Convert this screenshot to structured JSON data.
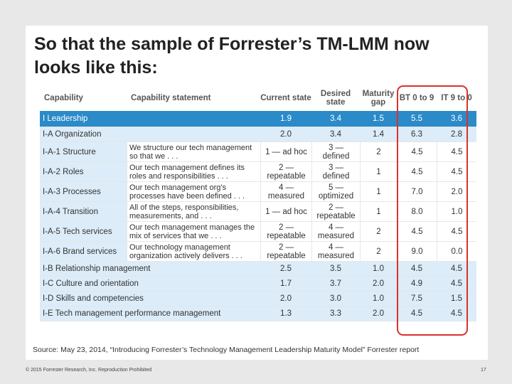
{
  "title": "So that the sample of Forrester’s TM-LMM now looks like this:",
  "table": {
    "headers": [
      "Capability",
      "Capability statement",
      "Current state",
      "Desired state",
      "Maturity gap",
      "BT 0 to 9",
      "IT 9 to 0"
    ],
    "rows": [
      {
        "capability": "I Leadership",
        "statement": "",
        "current": "1.9",
        "desired": "3.4",
        "gap": "1.5",
        "bt": "5.5",
        "it": "3.6"
      },
      {
        "capability": "I-A Organization",
        "statement": "",
        "current": "2.0",
        "desired": "3.4",
        "gap": "1.4",
        "bt": "6.3",
        "it": "2.8"
      },
      {
        "capability": "I-A-1 Structure",
        "statement": "We structure our tech management so that we . . .",
        "current": "1 — ad hoc",
        "desired": "3 — defined",
        "gap": "2",
        "bt": "4.5",
        "it": "4.5"
      },
      {
        "capability": "I-A-2 Roles",
        "statement": "Our tech management defines its roles and responsibilities . . .",
        "current": "2 — repeatable",
        "desired": "3 — defined",
        "gap": "1",
        "bt": "4.5",
        "it": "4.5"
      },
      {
        "capability": "I-A-3 Processes",
        "statement": "Our tech management org's processes have been defined . . .",
        "current": "4 — measured",
        "desired": "5 — optimized",
        "gap": "1",
        "bt": "7.0",
        "it": "2.0"
      },
      {
        "capability": "I-A-4 Transition",
        "statement": "All of the steps, responsibilities, measurements, and . . .",
        "current": "1 — ad hoc",
        "desired": "2 — repeatable",
        "gap": "1",
        "bt": "8.0",
        "it": "1.0"
      },
      {
        "capability": "I-A-5 Tech services",
        "statement": "Our tech management manages the mix of services that we . . .",
        "current": "2 — repeatable",
        "desired": "4 — measured",
        "gap": "2",
        "bt": "4.5",
        "it": "4.5"
      },
      {
        "capability": "I-A-6 Brand services",
        "statement": "Our technology management organization actively delivers . . .",
        "current": "2 — repeatable",
        "desired": "4 — measured",
        "gap": "2",
        "bt": "9.0",
        "it": "0.0"
      },
      {
        "capability": "I-B Relationship management",
        "statement": "",
        "current": "2.5",
        "desired": "3.5",
        "gap": "1.0",
        "bt": "4.5",
        "it": "4.5"
      },
      {
        "capability": "I-C Culture and orientation",
        "statement": "",
        "current": "1.7",
        "desired": "3.7",
        "gap": "2.0",
        "bt": "4.9",
        "it": "4.5"
      },
      {
        "capability": "I-D Skills and competencies",
        "statement": "",
        "current": "2.0",
        "desired": "3.0",
        "gap": "1.0",
        "bt": "7.5",
        "it": "1.5"
      },
      {
        "capability": "I-E Tech management performance management",
        "statement": "",
        "current": "1.3",
        "desired": "3.3",
        "gap": "2.0",
        "bt": "4.5",
        "it": "4.5"
      }
    ]
  },
  "source": "Source: May 23, 2014, “Introducing Forrester’s Technology Management Leadership Maturity Model” Forrester report",
  "footer": {
    "copyright": "© 2015 Forrester Research, Inc. Reproduction Prohibited",
    "page": "17"
  },
  "colors": {
    "leadership_row": "#2b8ac8",
    "subtotal_row": "#dcecf8",
    "highlight_outline": "#d9322c"
  }
}
